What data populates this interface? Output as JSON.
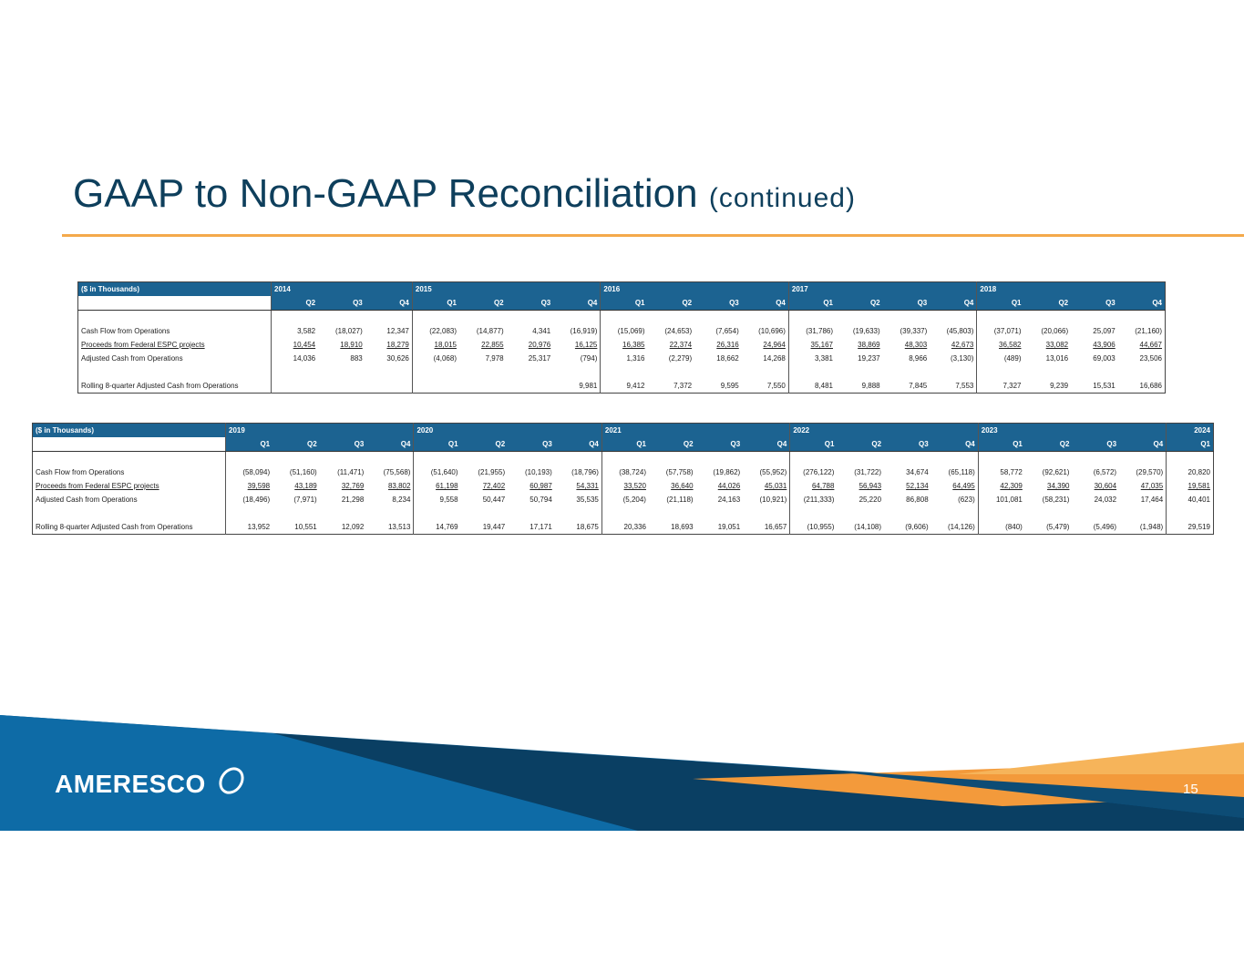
{
  "header": {
    "title": "GAAP to Non-GAAP Reconciliation",
    "subtitle": "(continued)"
  },
  "tables": [
    {
      "unit_label": "($ in Thousands)",
      "years": [
        "2014",
        null,
        null,
        "2015",
        null,
        null,
        null,
        "2016",
        null,
        null,
        null,
        "2017",
        null,
        null,
        null,
        "2018",
        null,
        null,
        null
      ],
      "quarters": [
        "Q2",
        "Q3",
        "Q4",
        "Q1",
        "Q2",
        "Q3",
        "Q4",
        "Q1",
        "Q2",
        "Q3",
        "Q4",
        "Q1",
        "Q2",
        "Q3",
        "Q4",
        "Q1",
        "Q2",
        "Q3",
        "Q4"
      ],
      "rows": [
        {
          "label": "Cash Flow from Operations",
          "values": [
            "3,582",
            "(18,027)",
            "12,347",
            "(22,083)",
            "(14,877)",
            "4,341",
            "(16,919)",
            "(15,069)",
            "(24,653)",
            "(7,654)",
            "(10,696)",
            "(31,786)",
            "(19,633)",
            "(39,337)",
            "(45,803)",
            "(37,071)",
            "(20,066)",
            "25,097",
            "(21,160)"
          ]
        },
        {
          "label": "Proceeds from Federal ESPC projects",
          "values": [
            "10,454",
            "18,910",
            "18,279",
            "18,015",
            "22,855",
            "20,976",
            "16,125",
            "16,385",
            "22,374",
            "26,316",
            "24,964",
            "35,167",
            "38,869",
            "48,303",
            "42,673",
            "36,582",
            "33,082",
            "43,906",
            "44,667"
          ]
        },
        {
          "label": "Adjusted Cash from Operations",
          "values": [
            "14,036",
            "883",
            "30,626",
            "(4,068)",
            "7,978",
            "25,317",
            "(794)",
            "1,316",
            "(2,279)",
            "18,662",
            "14,268",
            "3,381",
            "19,237",
            "8,966",
            "(3,130)",
            "(489)",
            "13,016",
            "69,003",
            "23,506"
          ]
        },
        {
          "label": "Rolling 8-quarter Adjusted Cash from Operations",
          "values": [
            null,
            null,
            null,
            null,
            null,
            null,
            "9,981",
            "9,412",
            "7,372",
            "9,595",
            "7,550",
            "8,481",
            "9,888",
            "7,845",
            "7,553",
            "7,327",
            "9,239",
            "15,531",
            "16,686"
          ]
        }
      ]
    },
    {
      "unit_label": "($ in Thousands)",
      "years": [
        "2019",
        null,
        null,
        null,
        "2020",
        null,
        null,
        null,
        "2021",
        null,
        null,
        null,
        "2022",
        null,
        null,
        null,
        "2023",
        null,
        null,
        null,
        "2024"
      ],
      "quarters": [
        "Q1",
        "Q2",
        "Q3",
        "Q4",
        "Q1",
        "Q2",
        "Q3",
        "Q4",
        "Q1",
        "Q2",
        "Q3",
        "Q4",
        "Q1",
        "Q2",
        "Q3",
        "Q4",
        "Q1",
        "Q2",
        "Q3",
        "Q4",
        "Q1"
      ],
      "rows": [
        {
          "label": "Cash Flow from Operations",
          "values": [
            "(58,094)",
            "(51,160)",
            "(11,471)",
            "(75,568)",
            "(51,640)",
            "(21,955)",
            "(10,193)",
            "(18,796)",
            "(38,724)",
            "(57,758)",
            "(19,862)",
            "(55,952)",
            "(276,122)",
            "(31,722)",
            "34,674",
            "(65,118)",
            "58,772",
            "(92,621)",
            "(6,572)",
            "(29,570)",
            "20,820"
          ]
        },
        {
          "label": "Proceeds from Federal ESPC projects",
          "values": [
            "39,598",
            "43,189",
            "32,769",
            "83,802",
            "61,198",
            "72,402",
            "60,987",
            "54,331",
            "33,520",
            "36,640",
            "44,026",
            "45,031",
            "64,788",
            "56,943",
            "52,134",
            "64,495",
            "42,309",
            "34,390",
            "30,604",
            "47,035",
            "19,581"
          ]
        },
        {
          "label": "Adjusted Cash from Operations",
          "values": [
            "(18,496)",
            "(7,971)",
            "21,298",
            "8,234",
            "9,558",
            "50,447",
            "50,794",
            "35,535",
            "(5,204)",
            "(21,118)",
            "24,163",
            "(10,921)",
            "(211,333)",
            "25,220",
            "86,808",
            "(623)",
            "101,081",
            "(58,231)",
            "24,032",
            "17,464",
            "40,401"
          ]
        },
        {
          "label": "Rolling 8-quarter Adjusted Cash from Operations",
          "values": [
            "13,952",
            "10,551",
            "12,092",
            "13,513",
            "14,769",
            "19,447",
            "17,171",
            "18,675",
            "20,336",
            "18,693",
            "19,051",
            "16,657",
            "(10,955)",
            "(14,108)",
            "(9,606)",
            "(14,126)",
            "(840)",
            "(5,479)",
            "(5,496)",
            "(1,948)",
            "29,519"
          ]
        }
      ]
    }
  ],
  "footer": {
    "logo": "AMERESCO",
    "page_number": "15"
  }
}
